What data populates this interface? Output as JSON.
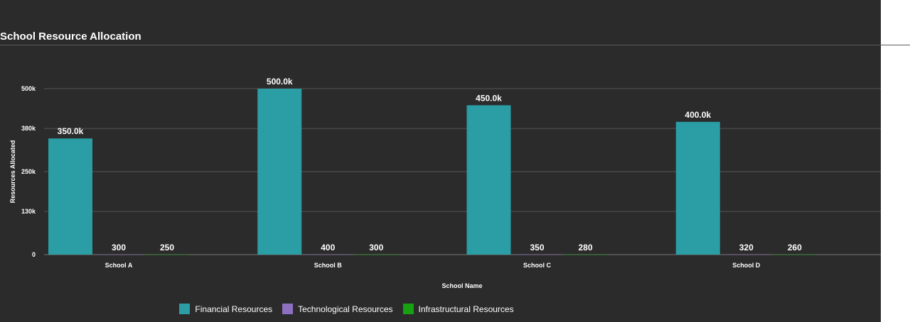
{
  "chart_data": {
    "type": "bar",
    "title": "School Resource Allocation",
    "xlabel": "School Name",
    "ylabel": "Resources Allocated",
    "categories": [
      "School A",
      "School B",
      "School C",
      "School D"
    ],
    "series": [
      {
        "name": "Financial Resources",
        "color": "#2a9da5",
        "values": [
          350000,
          500000,
          450000,
          400000
        ],
        "labels": [
          "350.0k",
          "500.0k",
          "450.0k",
          "400.0k"
        ]
      },
      {
        "name": "Technological Resources",
        "color": "#8e6fc0",
        "values": [
          300,
          400,
          350,
          320
        ],
        "labels": [
          "300",
          "400",
          "350",
          "320"
        ]
      },
      {
        "name": "Infrastructural Resources",
        "color": "#17a00f",
        "values": [
          250,
          300,
          280,
          260
        ],
        "labels": [
          "250",
          "300",
          "280",
          "260"
        ]
      }
    ],
    "yticks": [
      0,
      130000,
      250000,
      380000,
      500000
    ],
    "ytick_labels": [
      "0",
      "130k",
      "250k",
      "380k",
      "500k"
    ],
    "ylim": [
      0,
      500000
    ],
    "grid": true,
    "legend_position": "bottom"
  }
}
